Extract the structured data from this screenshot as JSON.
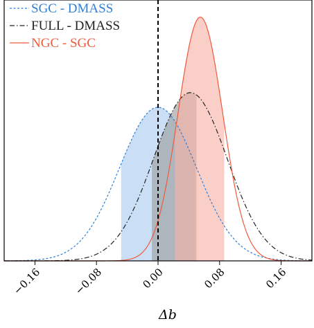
{
  "chart_data": {
    "type": "line",
    "xlabel": "Δb",
    "xlim": [
      -0.2,
      0.2
    ],
    "ylim": [
      0,
      1.07
    ],
    "grid": false,
    "legend_position": "top-left",
    "x_ticks": [
      -0.16,
      -0.08,
      0.0,
      0.08,
      0.16
    ],
    "x_tick_labels": [
      "−0.16",
      "−0.08",
      "0.00",
      "0.08",
      "0.16"
    ],
    "reference_line_x": 0.0,
    "series": [
      {
        "name": "SGC - DMASS",
        "color": "#2f7fd6",
        "line_style": "dashed",
        "fill_color": "#a9cbef",
        "peak_x": 0.0,
        "peak_y": 0.63,
        "sigma": 0.05,
        "band_68": [
          -0.048,
          0.048
        ]
      },
      {
        "name": "FULL - DMASS",
        "color": "#222222",
        "line_style": "dashdot",
        "fill_color": "#9b9b9b",
        "peak_x": 0.042,
        "peak_y": 0.69,
        "sigma": 0.048,
        "band_68": [
          -0.008,
          0.05
        ]
      },
      {
        "name": "NGC - SGC",
        "color": "#f05a3c",
        "line_style": "solid",
        "fill_color": "#f7b2a6",
        "peak_x": 0.055,
        "peak_y": 1.0,
        "sigma": 0.029,
        "band_68": [
          0.022,
          0.086
        ]
      }
    ]
  }
}
